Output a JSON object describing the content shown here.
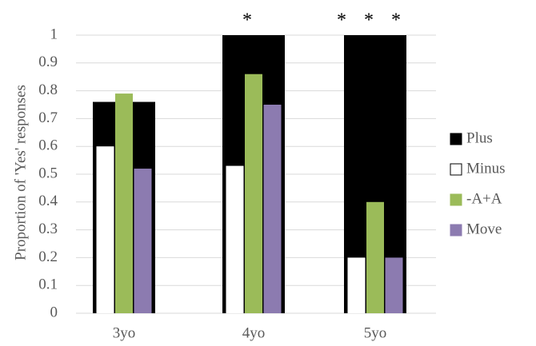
{
  "chart_data": {
    "type": "bar",
    "ylabel": "Proportion of 'Yes' responses",
    "xlabel": "",
    "ylim": [
      0,
      1
    ],
    "yticks": [
      "0",
      "0.1",
      "0.2",
      "0.3",
      "0.4",
      "0.5",
      "0.6",
      "0.7",
      "0.8",
      "0.9",
      "1"
    ],
    "categories": [
      "3yo",
      "4yo",
      "5yo"
    ],
    "series": [
      {
        "name": "Plus",
        "values": [
          0.76,
          1.0,
          1.0
        ],
        "color": "#000000",
        "layout": "background"
      },
      {
        "name": "Minus",
        "values": [
          0.6,
          0.53,
          0.2
        ],
        "color": "#ffffff"
      },
      {
        "name": "-A+A",
        "values": [
          0.79,
          0.86,
          0.4
        ],
        "color": "#9bbb59"
      },
      {
        "name": "Move",
        "values": [
          0.52,
          0.75,
          0.2
        ],
        "color": "#8c7bb0"
      }
    ],
    "significance": [
      "",
      "*",
      "* * *"
    ],
    "grid": true,
    "legend_position": "right"
  }
}
